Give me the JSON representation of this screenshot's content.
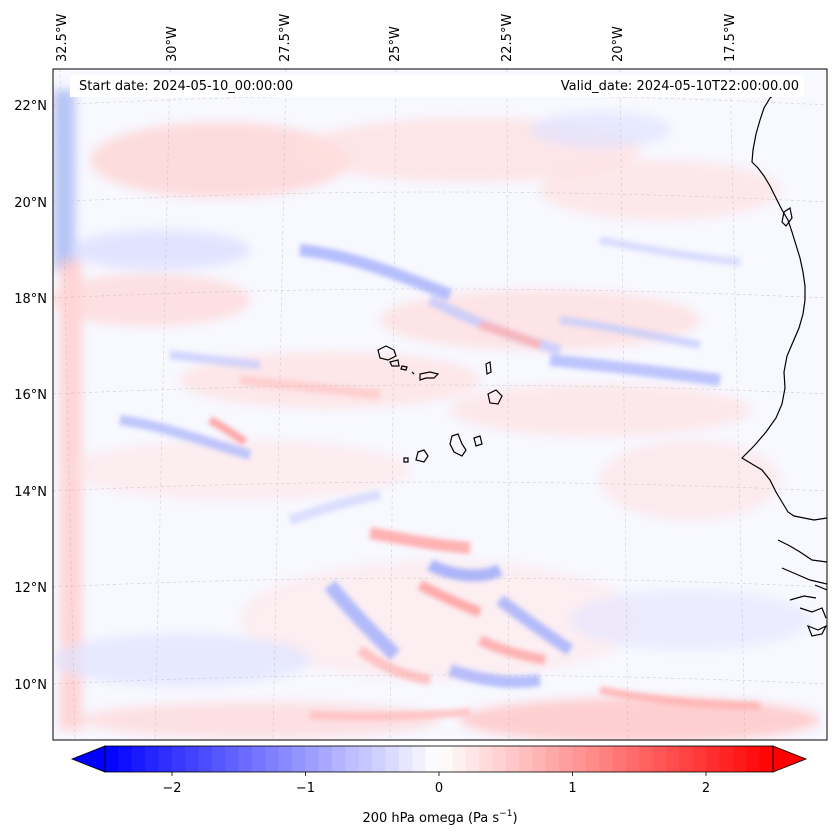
{
  "header": {
    "start_date": "Start date: 2024-05-10_00:00:00",
    "valid_date": "Valid_date: 2024-05-10T22:00:00.00"
  },
  "map": {
    "lon_labels": [
      "32.5°W",
      "30°W",
      "27.5°W",
      "25°W",
      "22.5°W",
      "20°W",
      "17.5°W"
    ],
    "lat_labels": [
      "22°N",
      "20°N",
      "18°N",
      "16°N",
      "14°N",
      "12°N",
      "10°N"
    ],
    "gridlines": "dashed",
    "features": [
      "Cape Verde islands",
      "West African coastline"
    ]
  },
  "colorbar": {
    "label": "200 hPa omega (Pa s",
    "label_exp": "−1",
    "label_close": ")",
    "ticks": [
      "−2",
      "−1",
      "0",
      "1",
      "2"
    ],
    "range": [
      -2.5,
      2.5
    ],
    "extend": "both",
    "cmap": "bwr",
    "colors": {
      "neg": "#0000ff",
      "mid": "#ffffff",
      "pos": "#ff0000"
    }
  }
}
